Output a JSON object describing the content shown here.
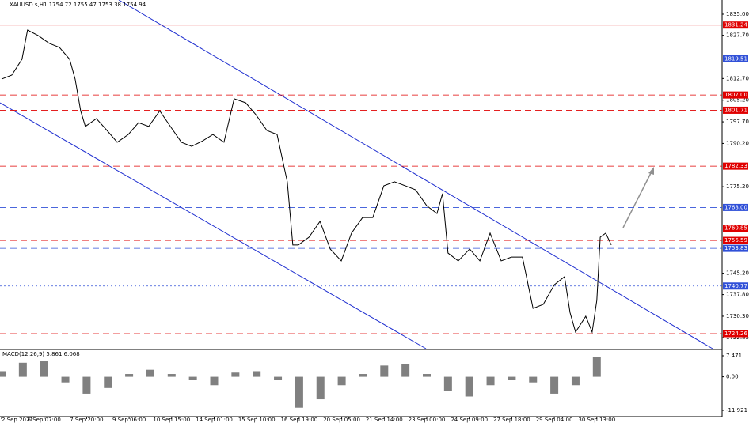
{
  "chart_data": [
    {
      "type": "line",
      "title": "XAUUSD.s,H1  1754.72 1755.47 1753.38 1754.94",
      "color": "#000000",
      "x": [
        0,
        0.24,
        0.48,
        0.61,
        0.86,
        1.12,
        1.36,
        1.6,
        1.73,
        1.86,
        1.97,
        2.23,
        2.48,
        2.72,
        2.98,
        3.22,
        3.46,
        3.72,
        3.97,
        4.23,
        4.47,
        4.73,
        4.97,
        5.23,
        5.47,
        5.74,
        5.98,
        6.24,
        6.48,
        6.72,
        6.85,
        6.98,
        7.23,
        7.49,
        7.73,
        7.99,
        8.23,
        8.49,
        8.73,
        8.99,
        9.24,
        9.5,
        9.74,
        10,
        10.24,
        10.37,
        10.5,
        10.74,
        11.01,
        11.25,
        11.49,
        11.75,
        11.99,
        12.25,
        12.5,
        12.74,
        13,
        13.24,
        13.37,
        13.5,
        13.74,
        13.89,
        14,
        14.08,
        14.21,
        14.34
      ],
      "values": [
        1812.5,
        1813.9,
        1819.4,
        1829.5,
        1827.6,
        1824.9,
        1823.5,
        1819.4,
        1812.5,
        1801.5,
        1796.1,
        1798.8,
        1794.7,
        1790.6,
        1793.3,
        1797.4,
        1796.1,
        1801.5,
        1796.1,
        1790.6,
        1789.2,
        1791.1,
        1793.3,
        1790.6,
        1805.7,
        1804.3,
        1800.2,
        1794.7,
        1793.3,
        1776.9,
        1755,
        1755,
        1757.7,
        1763.2,
        1753.6,
        1749.5,
        1759.1,
        1764.5,
        1764.5,
        1775.5,
        1776.9,
        1775.5,
        1774.1,
        1768.6,
        1765.9,
        1772.8,
        1752.2,
        1749.5,
        1753.6,
        1749.5,
        1759.1,
        1749.5,
        1750.8,
        1750.8,
        1733,
        1734.4,
        1741.2,
        1744,
        1731.6,
        1724.8,
        1730.3,
        1724.8,
        1735.8,
        1757.7,
        1759.1,
        1755
      ],
      "xlim": [
        0,
        17
      ],
      "xticks": [
        {
          "value": 0,
          "label": "2 Sep 2021"
        },
        {
          "value": 1,
          "label": "6 Sep 07:00"
        },
        {
          "value": 2,
          "label": "7 Sep 20:00"
        },
        {
          "value": 3,
          "label": "9 Sep 06:00"
        },
        {
          "value": 4,
          "label": "10 Sep 15:00"
        },
        {
          "value": 5,
          "label": "14 Sep 01:00"
        },
        {
          "value": 6,
          "label": "15 Sep 10:00"
        },
        {
          "value": 7,
          "label": "16 Sep 19:00"
        },
        {
          "value": 8,
          "label": "20 Sep 05:00"
        },
        {
          "value": 9,
          "label": "21 Sep 14:00"
        },
        {
          "value": 10,
          "label": "23 Sep 00:00"
        },
        {
          "value": 11,
          "label": "24 Sep 09:00"
        },
        {
          "value": 12,
          "label": "27 Sep 18:00"
        },
        {
          "value": 13,
          "label": "29 Sep 04:00"
        },
        {
          "value": 14,
          "label": "30 Sep 13:00"
        }
      ],
      "ylim": [
        1719.05,
        1839.93
      ],
      "yticks": [
        {
          "value": 1835,
          "label": "1835.00"
        },
        {
          "value": 1827.7,
          "label": "1827.70"
        },
        {
          "value": 1812.7,
          "label": "1812.70"
        },
        {
          "value": 1805.2,
          "label": "1805.20"
        },
        {
          "value": 1797.7,
          "label": "1797.70"
        },
        {
          "value": 1790.2,
          "label": "1790.20"
        },
        {
          "value": 1775.2,
          "label": "1775.20"
        },
        {
          "value": 1745.2,
          "label": "1745.20"
        },
        {
          "value": 1737.8,
          "label": "1737.80"
        },
        {
          "value": 1730.3,
          "label": "1730.30"
        },
        {
          "value": 1722.85,
          "label": "1722.85"
        }
      ],
      "levels": [
        {
          "value": 1831.24,
          "color": "#e00000",
          "dash": "none"
        },
        {
          "value": 1819.51,
          "color": "#3050d8",
          "dash": "8 5"
        },
        {
          "value": 1807,
          "label": "1807.00",
          "color": "#e00000",
          "dash": "8 5"
        },
        {
          "value": 1801.71,
          "color": "#e00000",
          "dash": "8 5"
        },
        {
          "value": 1782.33,
          "color": "#e00000",
          "dash": "8 5"
        },
        {
          "value": 1768,
          "label": "1768.00",
          "color": "#3050d8",
          "dash": "8 5"
        },
        {
          "value": 1760.85,
          "color": "#e00000",
          "dash": "2 3"
        },
        {
          "value": 1756.59,
          "color": "#e00000",
          "dash": "8 5"
        },
        {
          "value": 1753.83,
          "color": "#3050d8",
          "dash": "8 5"
        },
        {
          "value": 1740.77,
          "color": "#3050d8",
          "dash": "2 3"
        },
        {
          "value": 1724.26,
          "color": "#e00000",
          "dash": "8 5"
        }
      ]
    },
    {
      "type": "bar",
      "title": "MACD(12,26,9) 5.861 6.068",
      "color": "#808080",
      "x": [
        0,
        0.5,
        1,
        1.5,
        2,
        2.5,
        3,
        3.5,
        4,
        4.5,
        5,
        5.5,
        6,
        6.5,
        7,
        7.5,
        8,
        8.5,
        9,
        9.5,
        10,
        10.5,
        11,
        11.5,
        12,
        12.5,
        13,
        13.5,
        14
      ],
      "values": [
        2,
        5,
        5.5,
        -2,
        -6,
        -4,
        1,
        2.5,
        1,
        -1,
        -3,
        1.5,
        2,
        -1,
        -11,
        -8,
        -3,
        1,
        4,
        4.5,
        1,
        -5,
        -7,
        -3,
        -1,
        -2,
        -6,
        -3,
        7
      ],
      "y2lim": [
        -13.89,
        9.16
      ],
      "y2ticks": [
        7.471,
        {
          "value": 0,
          "label": "0.00"
        },
        -11.921
      ]
    }
  ]
}
